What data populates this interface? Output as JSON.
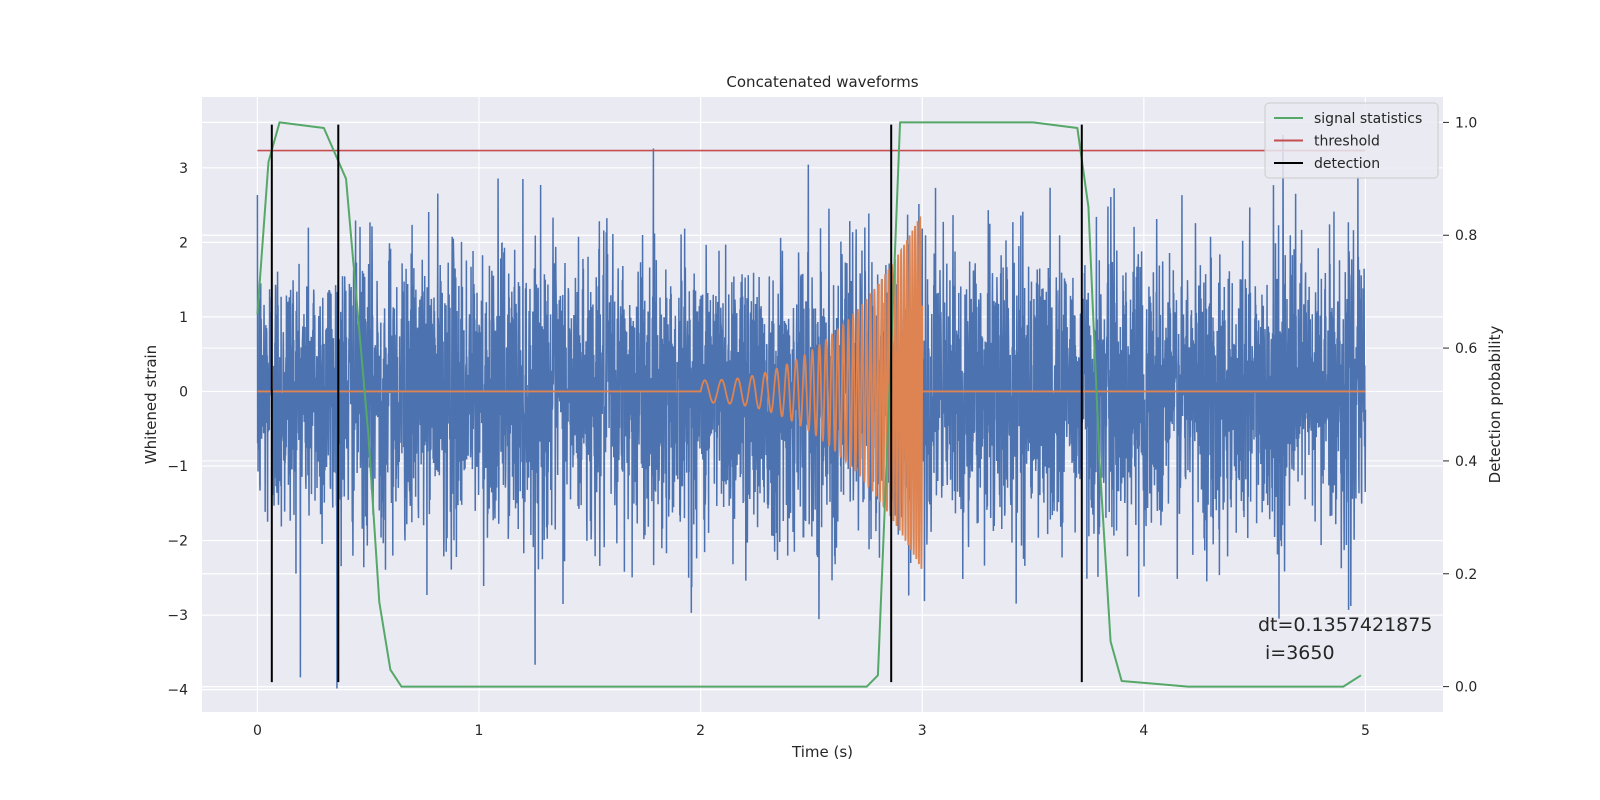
{
  "chart_data": {
    "type": "line",
    "title": "Concatenated waveforms",
    "xlabel": "Time (s)",
    "ylabel": "Whitened strain",
    "y2label": "Detection probability",
    "xlim": [
      -0.25,
      5.35
    ],
    "ylim": [
      -4.3,
      3.95
    ],
    "y2lim": [
      -0.045,
      1.045
    ],
    "x_ticks": [
      0,
      1,
      2,
      3,
      4,
      5
    ],
    "y_ticks": [
      -4,
      -3,
      -2,
      -1,
      0,
      1,
      2,
      3
    ],
    "y2_ticks": [
      0.0,
      0.2,
      0.4,
      0.6,
      0.8,
      1.0
    ],
    "x_tick_labels": [
      "0",
      "1",
      "2",
      "3",
      "4",
      "5"
    ],
    "y_tick_labels": [
      "−4",
      "−3",
      "−2",
      "−1",
      "0",
      "1",
      "2",
      "3"
    ],
    "y2_tick_labels": [
      "0.0",
      "0.2",
      "0.4",
      "0.6",
      "0.8",
      "1.0"
    ],
    "grid": true,
    "background": "#eaeaf2",
    "legend_position": "top-right",
    "legend": [
      {
        "label": "signal statistics",
        "color": "#55a868"
      },
      {
        "label": "threshold",
        "color": "#c44e52"
      },
      {
        "label": "detection",
        "color": "#000000"
      }
    ],
    "series": {
      "whitened_strain": {
        "color": "#4c72b0",
        "x_range": [
          0,
          5
        ],
        "approx_band": [
          -4.0,
          3.6
        ],
        "typical_band": [
          -2.3,
          2.5
        ]
      },
      "injected_waveform": {
        "color": "#dd8452",
        "chirp": {
          "start": 2.0,
          "end": 3.0,
          "amp_start": 0.15,
          "amp_end": 2.4,
          "f_start": 13,
          "f_end": 90
        },
        "zero_x": [
          0,
          5
        ]
      },
      "signal_statistics": {
        "color": "#55a868",
        "axis": "right",
        "x": [
          0,
          0.05,
          0.1,
          0.3,
          0.4,
          0.5,
          0.55,
          0.6,
          0.65,
          1.0,
          2.4,
          2.5,
          2.75,
          2.8,
          2.85,
          2.9,
          3.5,
          3.7,
          3.75,
          3.8,
          3.85,
          3.9,
          4.2,
          4.9,
          4.98
        ],
        "y": [
          0.66,
          0.93,
          1.0,
          0.99,
          0.9,
          0.45,
          0.15,
          0.03,
          0.0,
          0.0,
          0.0,
          0.0,
          0.0,
          0.02,
          0.5,
          1.0,
          1.0,
          0.99,
          0.85,
          0.4,
          0.08,
          0.01,
          0.0,
          0.0,
          0.02
        ]
      },
      "threshold": {
        "color": "#c44e52",
        "axis": "right",
        "value": 0.95,
        "x_range": [
          0,
          5
        ]
      },
      "detections": {
        "color": "#000000",
        "x": [
          0.065,
          0.365,
          2.86,
          3.72
        ],
        "y_range": [
          -3.9,
          3.58
        ]
      }
    },
    "annotation": {
      "line1": "dt=0.1357421875",
      "line2": "i=3650"
    }
  }
}
